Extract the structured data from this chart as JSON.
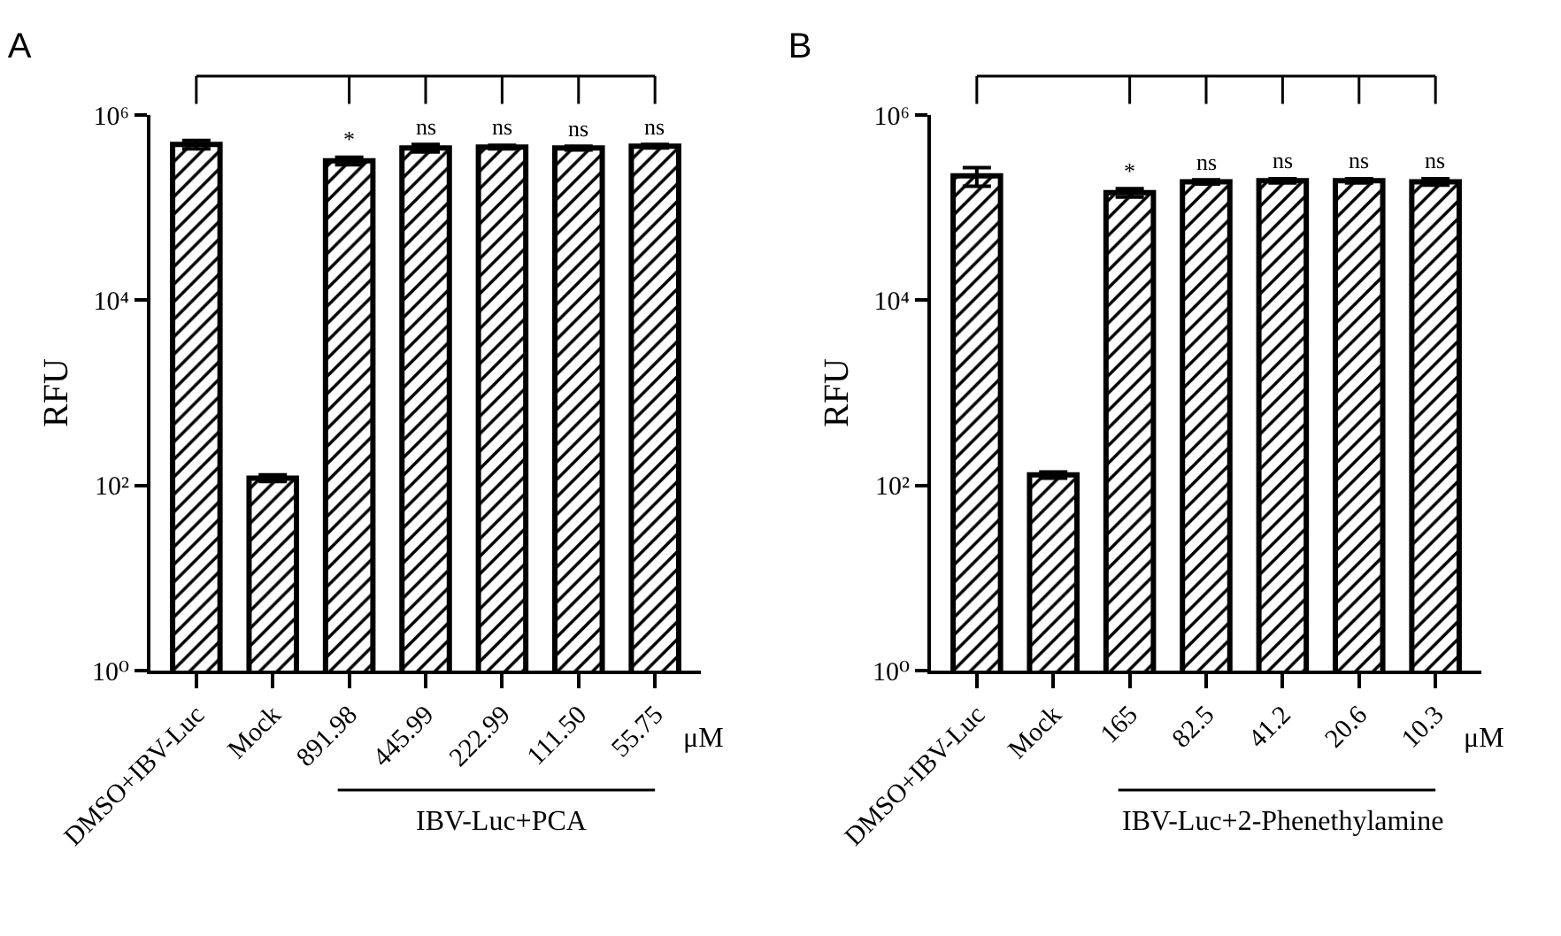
{
  "chart_data": [
    {
      "type": "bar",
      "title": "A",
      "ylabel": "RFU",
      "log": true,
      "color": "#000000",
      "categories": [
        "DMSO+IBV-Luc",
        "Mock",
        "891.98",
        "445.99",
        "222.99",
        "111.50",
        "55.75"
      ],
      "values": [
        480000,
        120,
        320000,
        440000,
        450000,
        440000,
        460000
      ],
      "errors": [
        50000,
        10,
        30000,
        40000,
        20000,
        20000,
        20000
      ],
      "ylim": [
        1,
        1000000
      ],
      "yticks": [
        {
          "value": 1,
          "label": "10⁰"
        },
        {
          "value": 100,
          "label": "10²"
        },
        {
          "value": 10000,
          "label": "10⁴"
        },
        {
          "value": 1000000,
          "label": "10⁶"
        }
      ],
      "annotations": [
        "μM",
        "IBV-Luc+PCA",
        "*",
        "ns",
        "ns",
        "ns",
        "ns"
      ]
    },
    {
      "type": "bar",
      "title": "B",
      "ylabel": "RFU",
      "log": true,
      "color": "#000000",
      "categories": [
        "DMSO+IBV-Luc",
        "Mock",
        "165",
        "82.5",
        "41.2",
        "20.6",
        "10.3"
      ],
      "values": [
        220000,
        130,
        145000,
        190000,
        195000,
        195000,
        190000
      ],
      "errors": [
        50000,
        10,
        15000,
        10000,
        10000,
        10000,
        15000
      ],
      "ylim": [
        1,
        1000000
      ],
      "yticks": [
        {
          "value": 1,
          "label": "10⁰"
        },
        {
          "value": 100,
          "label": "10²"
        },
        {
          "value": 10000,
          "label": "10⁴"
        },
        {
          "value": 1000000,
          "label": "10⁶"
        }
      ],
      "annotations": [
        "μM",
        "IBV-Luc+2-Phenethylamine",
        "*",
        "ns",
        "ns",
        "ns",
        "ns"
      ]
    }
  ]
}
